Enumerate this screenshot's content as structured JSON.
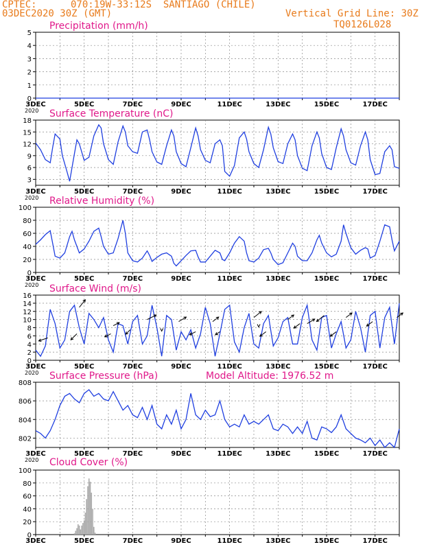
{
  "header": {
    "source": "CPTEC:",
    "location": "070:19W-33:12S  SANTIAGO (CHILE)",
    "datetime": "03DEC2020 30Z (GMT)",
    "grid_note": "Vertical Grid Line: 30Z",
    "run_code": "TQ0126L028"
  },
  "colors": {
    "header": "#e87a1a",
    "title": "#e0188a",
    "line": "#1f3fe0",
    "arrow": "#000000",
    "bar": "#aaaaaa",
    "grid": "#888888"
  },
  "x_axis": {
    "start_day": 3,
    "end_day": 18,
    "tick_labels": [
      "3DEC",
      "5DEC",
      "7DEC",
      "9DEC",
      "11DEC",
      "13DEC",
      "15DEC",
      "17DEC"
    ],
    "tick_days": [
      3,
      5,
      7,
      9,
      11,
      13,
      15,
      17
    ],
    "year_label": "2020"
  },
  "chart_data": [
    {
      "type": "line",
      "title": "Precipitation (mm/h)",
      "ylim": [
        0,
        5
      ],
      "yticks": [
        0,
        1,
        2,
        3,
        4,
        5
      ],
      "grid": true,
      "series": [
        {
          "x": [
            3,
            18
          ],
          "y": [
            0,
            0
          ]
        }
      ]
    },
    {
      "type": "line",
      "title": "Surface Temperature (nC)",
      "ylim": [
        1.5,
        18
      ],
      "yticks": [
        3,
        6,
        9,
        12,
        15,
        18
      ],
      "grid": true,
      "series": [
        {
          "x": [
            3.0,
            3.2,
            3.4,
            3.6,
            3.7,
            3.8,
            4.0,
            4.1,
            4.3,
            4.4,
            4.6,
            4.7,
            4.8,
            5.0,
            5.2,
            5.4,
            5.6,
            5.7,
            5.8,
            6.0,
            6.2,
            6.4,
            6.6,
            6.7,
            6.8,
            7.0,
            7.2,
            7.4,
            7.6,
            7.7,
            7.8,
            8.0,
            8.2,
            8.4,
            8.6,
            8.7,
            8.8,
            9.0,
            9.2,
            9.4,
            9.6,
            9.7,
            9.8,
            10.0,
            10.2,
            10.4,
            10.6,
            10.7,
            10.8,
            11.0,
            11.2,
            11.4,
            11.6,
            11.7,
            11.8,
            12.0,
            12.2,
            12.4,
            12.6,
            12.7,
            12.8,
            13.0,
            13.2,
            13.4,
            13.6,
            13.7,
            13.8,
            14.0,
            14.2,
            14.4,
            14.6,
            14.7,
            14.8,
            15.0,
            15.2,
            15.4,
            15.6,
            15.7,
            15.8,
            16.0,
            16.2,
            16.4,
            16.6,
            16.7,
            16.8,
            17.0,
            17.2,
            17.4,
            17.6,
            17.7,
            17.8,
            18.0
          ],
          "y": [
            12.2,
            10.5,
            8.0,
            7.2,
            11.0,
            14.5,
            13.2,
            9.0,
            4.8,
            2.5,
            9.5,
            13.0,
            12.0,
            7.8,
            8.6,
            14.0,
            16.8,
            16.0,
            12.0,
            8.0,
            6.8,
            12.5,
            16.5,
            15.0,
            11.5,
            10.0,
            9.6,
            15.0,
            15.5,
            13.0,
            10.0,
            7.4,
            6.8,
            11.5,
            15.5,
            14.0,
            10.0,
            7.0,
            6.2,
            11.0,
            16.0,
            14.0,
            10.5,
            7.8,
            7.2,
            12.0,
            13.0,
            11.5,
            5.0,
            3.8,
            6.5,
            13.5,
            15.0,
            13.2,
            10.0,
            7.0,
            6.0,
            10.5,
            16.2,
            14.5,
            11.0,
            7.5,
            7.0,
            12.0,
            14.5,
            13.0,
            9.0,
            5.8,
            5.2,
            11.5,
            15.0,
            13.5,
            9.5,
            6.0,
            5.5,
            11.0,
            15.8,
            14.0,
            10.5,
            7.2,
            6.6,
            11.5,
            15.0,
            13.0,
            8.0,
            4.2,
            4.5,
            10.0,
            11.5,
            10.5,
            6.2,
            5.8
          ]
        }
      ]
    },
    {
      "type": "line",
      "title": "Relative Humidity (%)",
      "ylim": [
        0,
        100
      ],
      "yticks": [
        0,
        20,
        40,
        60,
        80,
        100
      ],
      "grid": true,
      "series": [
        {
          "x": [
            3.0,
            3.2,
            3.4,
            3.6,
            3.7,
            3.8,
            4.0,
            4.2,
            4.4,
            4.5,
            4.6,
            4.8,
            5.0,
            5.2,
            5.4,
            5.6,
            5.7,
            5.8,
            6.0,
            6.2,
            6.4,
            6.6,
            6.7,
            6.8,
            7.0,
            7.2,
            7.4,
            7.6,
            7.7,
            7.8,
            8.0,
            8.2,
            8.4,
            8.6,
            8.7,
            8.8,
            9.0,
            9.2,
            9.4,
            9.6,
            9.7,
            9.8,
            10.0,
            10.2,
            10.4,
            10.6,
            10.7,
            10.8,
            11.0,
            11.2,
            11.4,
            11.6,
            11.7,
            11.8,
            12.0,
            12.2,
            12.4,
            12.6,
            12.7,
            12.8,
            13.0,
            13.2,
            13.4,
            13.6,
            13.7,
            13.8,
            14.0,
            14.2,
            14.4,
            14.6,
            14.7,
            14.8,
            15.0,
            15.2,
            15.4,
            15.6,
            15.7,
            15.8,
            16.0,
            16.2,
            16.4,
            16.6,
            16.7,
            16.8,
            17.0,
            17.2,
            17.4,
            17.6,
            17.7,
            17.8,
            18.0
          ],
          "y": [
            43,
            50,
            58,
            64,
            45,
            25,
            22,
            30,
            55,
            63,
            50,
            30,
            36,
            48,
            63,
            68,
            55,
            40,
            28,
            30,
            52,
            80,
            60,
            30,
            18,
            16,
            22,
            33,
            26,
            17,
            23,
            28,
            30,
            25,
            14,
            10,
            18,
            26,
            33,
            34,
            24,
            16,
            16,
            25,
            34,
            30,
            20,
            18,
            30,
            45,
            55,
            48,
            30,
            18,
            16,
            22,
            35,
            37,
            30,
            20,
            12,
            15,
            30,
            45,
            40,
            25,
            18,
            18,
            30,
            50,
            57,
            45,
            30,
            24,
            28,
            48,
            73,
            60,
            38,
            28,
            34,
            38,
            36,
            22,
            26,
            48,
            73,
            70,
            50,
            33,
            48
          ]
        }
      ]
    },
    {
      "type": "line",
      "title": "Surface Wind (m/s)",
      "ylim": [
        0,
        16
      ],
      "yticks": [
        0,
        2,
        4,
        6,
        8,
        10,
        12,
        14,
        16
      ],
      "grid": true,
      "series": [
        {
          "x": [
            3.0,
            3.2,
            3.4,
            3.6,
            3.8,
            4.0,
            4.2,
            4.4,
            4.6,
            4.8,
            5.0,
            5.2,
            5.4,
            5.6,
            5.8,
            6.0,
            6.2,
            6.4,
            6.6,
            6.8,
            7.0,
            7.2,
            7.4,
            7.6,
            7.8,
            8.0,
            8.2,
            8.4,
            8.6,
            8.8,
            9.0,
            9.2,
            9.4,
            9.6,
            9.8,
            10.0,
            10.2,
            10.4,
            10.6,
            10.8,
            11.0,
            11.2,
            11.4,
            11.6,
            11.8,
            12.0,
            12.2,
            12.4,
            12.6,
            12.8,
            13.0,
            13.2,
            13.4,
            13.6,
            13.8,
            14.0,
            14.2,
            14.4,
            14.6,
            14.8,
            15.0,
            15.2,
            15.4,
            15.6,
            15.8,
            16.0,
            16.2,
            16.4,
            16.6,
            16.8,
            17.0,
            17.2,
            17.4,
            17.6,
            17.8,
            18.0
          ],
          "y": [
            2.5,
            1.0,
            3.5,
            12.5,
            9.0,
            3.0,
            5.0,
            12.0,
            13.5,
            8.0,
            4.0,
            11.5,
            10.0,
            8.0,
            10.5,
            5.0,
            2.0,
            9.0,
            8.5,
            4.0,
            9.5,
            11.0,
            4.0,
            6.0,
            13.5,
            8.0,
            1.0,
            11.0,
            10.0,
            2.5,
            7.0,
            5.0,
            7.5,
            3.0,
            6.5,
            13.0,
            9.0,
            1.0,
            6.5,
            12.5,
            13.5,
            4.5,
            2.0,
            8.0,
            11.5,
            4.0,
            3.0,
            9.0,
            11.0,
            3.5,
            5.5,
            9.5,
            10.5,
            4.0,
            4.0,
            10.5,
            13.5,
            5.0,
            2.5,
            10.5,
            11.0,
            3.0,
            6.5,
            9.5,
            3.0,
            5.0,
            12.0,
            8.0,
            2.0,
            11.0,
            12.0,
            3.0,
            10.5,
            13.0,
            4.0,
            14.0
          ]
        }
      ],
      "arrows": [
        {
          "x": 3.5,
          "y": 5.5,
          "u": -6,
          "v": -2
        },
        {
          "x": 4.7,
          "y": 6.5,
          "u": -4,
          "v": -4
        },
        {
          "x": 4.8,
          "y": 13.0,
          "u": 4,
          "v": 5
        },
        {
          "x": 6.1,
          "y": 6.5,
          "u": -4,
          "v": -2
        },
        {
          "x": 6.9,
          "y": 7.5,
          "u": -3,
          "v": -3
        },
        {
          "x": 6.2,
          "y": 8.5,
          "u": 4,
          "v": 2
        },
        {
          "x": 7.6,
          "y": 10.0,
          "u": 6,
          "v": 3
        },
        {
          "x": 8.9,
          "y": 9.5,
          "u": 5,
          "v": 3
        },
        {
          "x": 9.6,
          "y": 7.0,
          "u": -4,
          "v": -2
        },
        {
          "x": 10.3,
          "y": 9.5,
          "u": 4,
          "v": 3
        },
        {
          "x": 10.6,
          "y": 7.0,
          "u": -3,
          "v": -2
        },
        {
          "x": 12.0,
          "y": 10.5,
          "u": 5,
          "v": 4
        },
        {
          "x": 12.5,
          "y": 7.0,
          "u": -4,
          "v": -3
        },
        {
          "x": 13.4,
          "y": 10.0,
          "u": 4,
          "v": 3
        },
        {
          "x": 13.9,
          "y": 9.0,
          "u": -4,
          "v": -3
        },
        {
          "x": 14.9,
          "y": 11.0,
          "u": -5,
          "v": -4
        },
        {
          "x": 14.2,
          "y": 9.0,
          "u": 5,
          "v": 3
        },
        {
          "x": 15.4,
          "y": 7.0,
          "u": -4,
          "v": -3
        },
        {
          "x": 15.8,
          "y": 10.5,
          "u": 4,
          "v": 3
        },
        {
          "x": 16.9,
          "y": 9.5,
          "u": -4,
          "v": -3
        },
        {
          "x": 17.9,
          "y": 10.5,
          "u": 4,
          "v": 3
        }
      ],
      "arrow_marks": [
        {
          "x": 8.2,
          "y": 7.5
        },
        {
          "x": 12.2,
          "y": 8.5
        }
      ]
    },
    {
      "type": "line",
      "title": "Surface Pressure (hPa)",
      "annotation": "Model Altitude: 1976.52  m",
      "ylim": [
        801,
        808
      ],
      "yticks": [
        802,
        804,
        806,
        808
      ],
      "grid": true,
      "series": [
        {
          "x": [
            3.0,
            3.2,
            3.4,
            3.6,
            3.8,
            4.0,
            4.2,
            4.4,
            4.6,
            4.8,
            5.0,
            5.2,
            5.4,
            5.6,
            5.8,
            6.0,
            6.2,
            6.4,
            6.6,
            6.8,
            7.0,
            7.2,
            7.4,
            7.6,
            7.8,
            8.0,
            8.2,
            8.4,
            8.6,
            8.8,
            9.0,
            9.2,
            9.4,
            9.6,
            9.8,
            10.0,
            10.2,
            10.4,
            10.6,
            10.8,
            11.0,
            11.2,
            11.4,
            11.6,
            11.8,
            12.0,
            12.2,
            12.4,
            12.6,
            12.8,
            13.0,
            13.2,
            13.4,
            13.6,
            13.8,
            14.0,
            14.2,
            14.4,
            14.6,
            14.8,
            15.0,
            15.2,
            15.4,
            15.6,
            15.8,
            16.0,
            16.2,
            16.4,
            16.6,
            16.8,
            17.0,
            17.2,
            17.4,
            17.6,
            17.8,
            18.0
          ],
          "y": [
            802.8,
            802.5,
            802.0,
            802.8,
            804.0,
            805.5,
            806.5,
            806.8,
            806.2,
            805.8,
            806.8,
            807.2,
            806.5,
            806.8,
            806.2,
            806.0,
            807.0,
            806.0,
            805.0,
            805.5,
            804.5,
            804.2,
            805.3,
            804.0,
            805.5,
            803.5,
            803.0,
            804.5,
            803.5,
            805.0,
            803.0,
            804.0,
            806.8,
            804.5,
            804.0,
            805.0,
            804.3,
            804.5,
            806.0,
            804.0,
            803.2,
            803.5,
            803.2,
            804.5,
            803.5,
            803.8,
            803.5,
            804.0,
            804.5,
            803.0,
            802.8,
            803.5,
            803.2,
            802.5,
            803.2,
            802.5,
            803.8,
            802.0,
            801.8,
            803.2,
            803.0,
            802.6,
            803.2,
            804.5,
            803.0,
            802.5,
            802.0,
            801.8,
            801.5,
            802.0,
            801.2,
            801.8,
            801.0,
            801.5,
            801.0,
            803.0
          ]
        }
      ]
    },
    {
      "type": "bar",
      "title": "Cloud Cover (%)",
      "ylim": [
        0,
        100
      ],
      "yticks": [
        0,
        20,
        40,
        60,
        80,
        100
      ],
      "grid": true,
      "x": [
        4.6,
        4.65,
        4.7,
        4.75,
        4.8,
        4.85,
        4.9,
        4.95,
        5.0,
        5.05,
        5.1,
        5.15,
        5.2,
        5.25,
        5.3,
        5.35,
        5.4,
        5.45
      ],
      "values": [
        2,
        6,
        10,
        16,
        14,
        8,
        14,
        18,
        22,
        34,
        55,
        75,
        87,
        82,
        65,
        40,
        12,
        3
      ]
    }
  ]
}
